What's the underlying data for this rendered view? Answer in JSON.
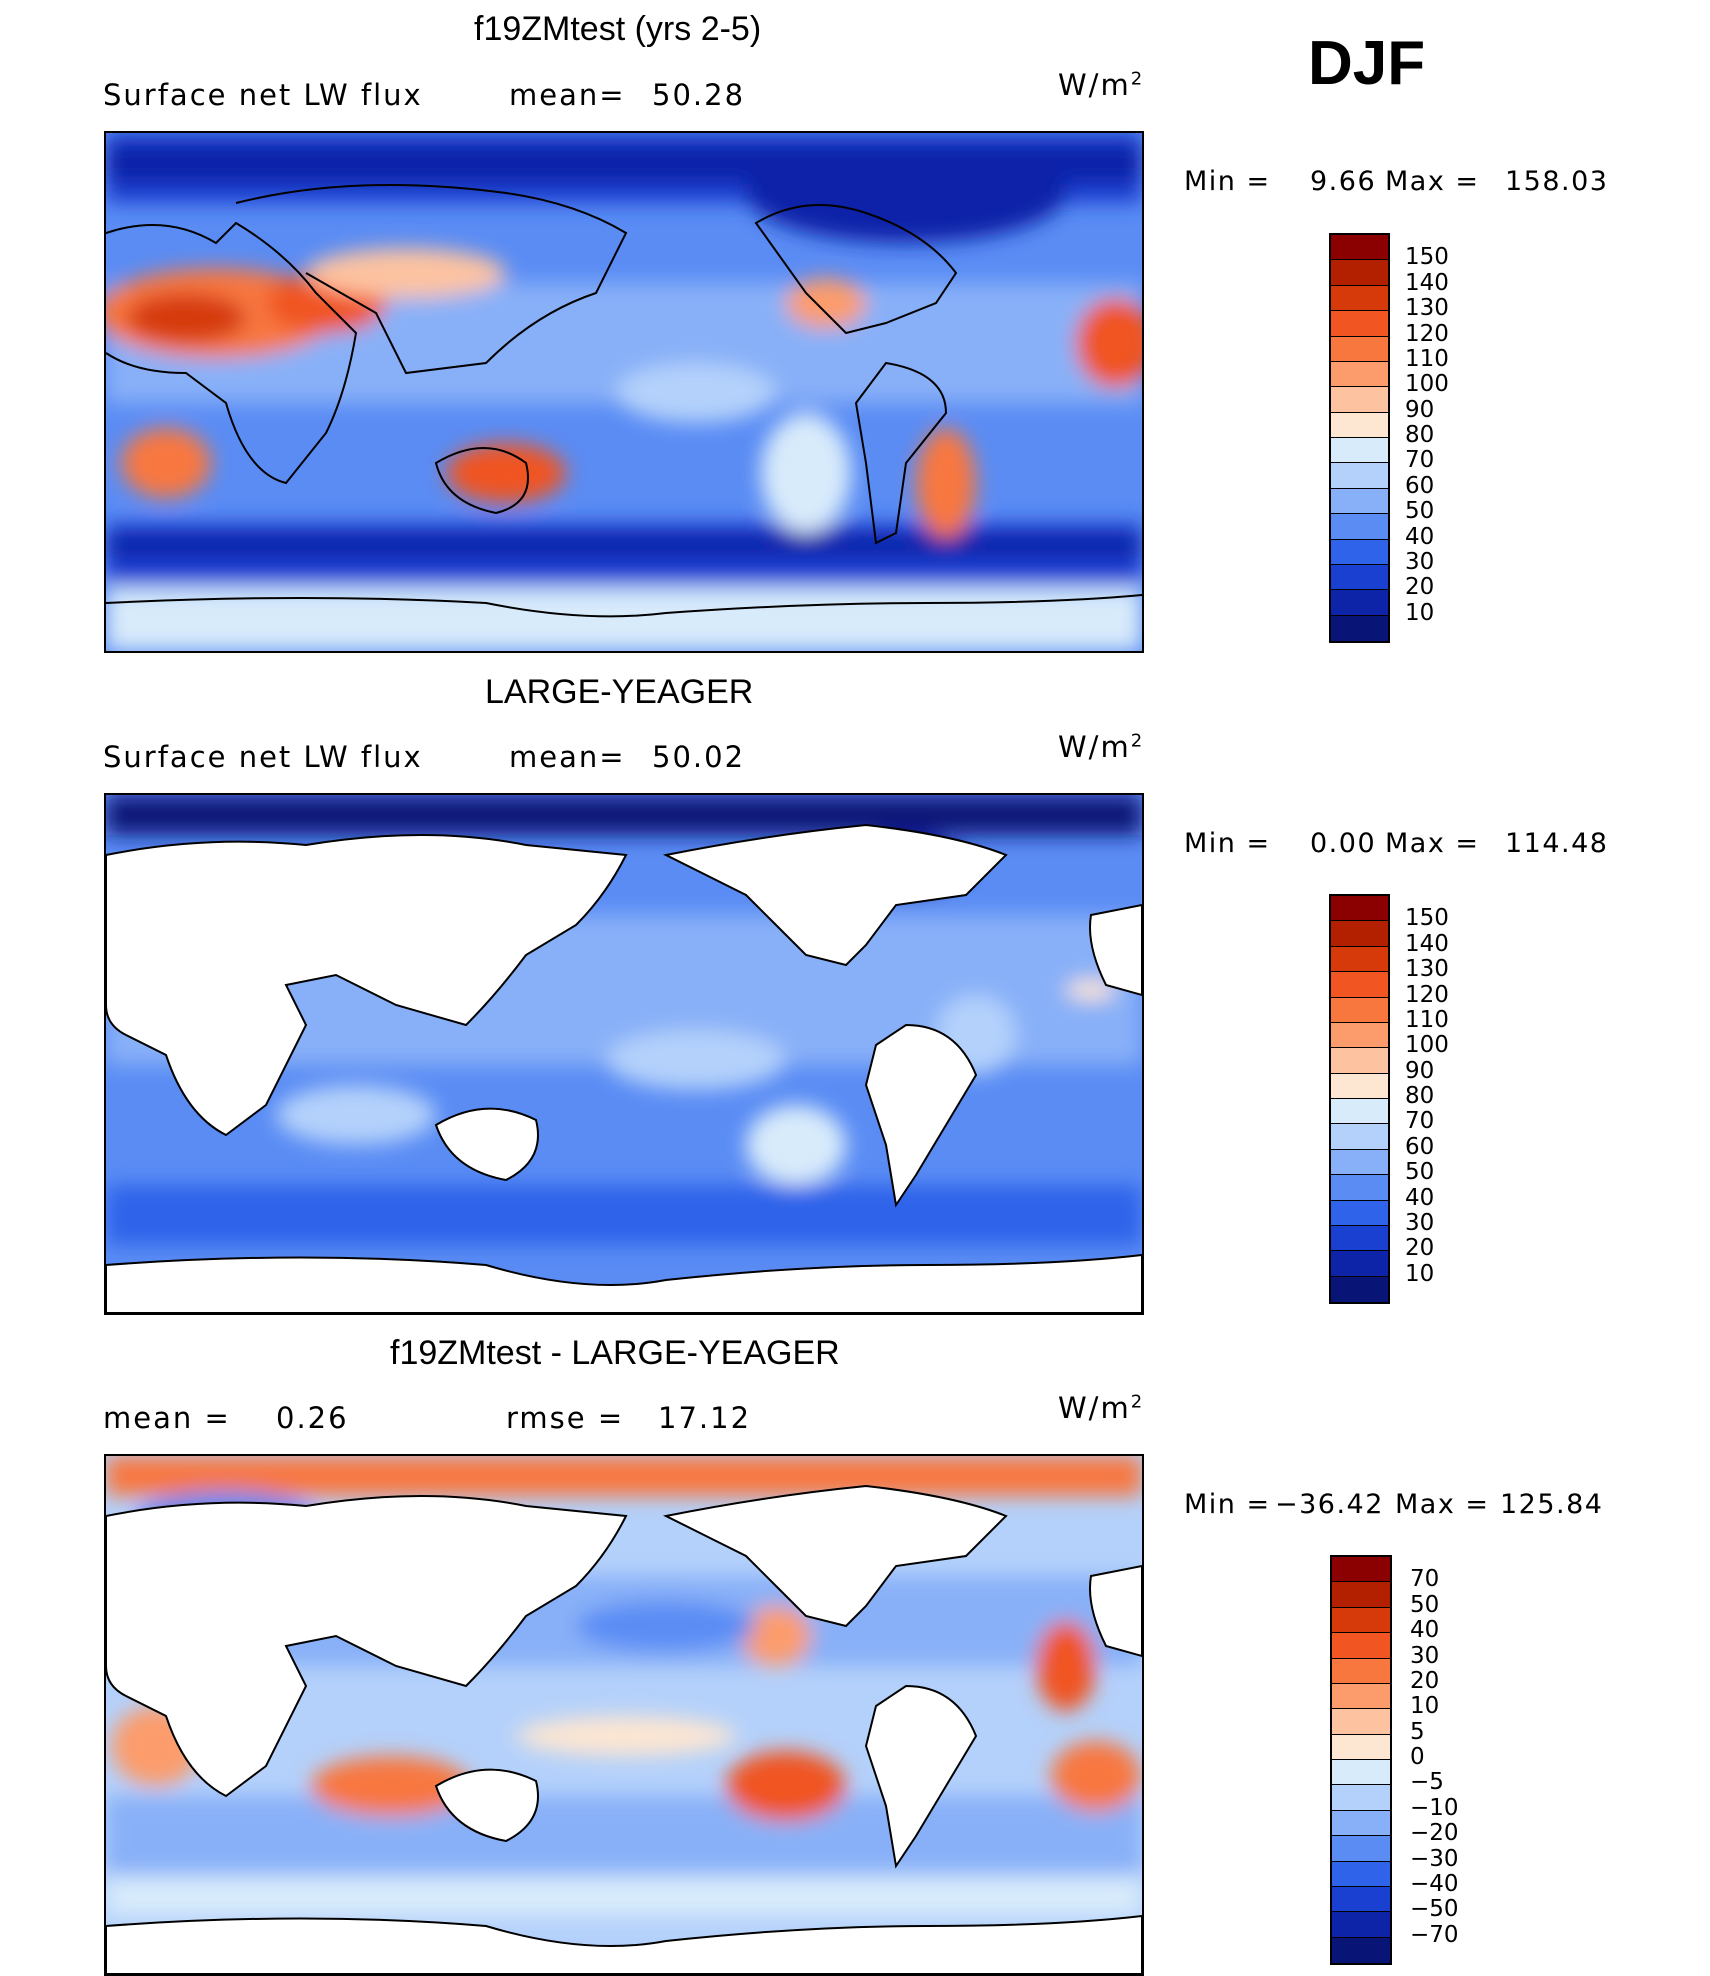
{
  "season": "DJF",
  "panels": [
    {
      "title": "f19ZMtest (yrs 2-5)",
      "left_label": "Surface net LW flux",
      "stat1_label": "mean=",
      "stat1_value": "50.28",
      "stat2_label": "",
      "stat2_value": "",
      "units": "W/m",
      "units_sup": "2",
      "min_label": "Min =",
      "min_value": "9.66",
      "max_label": "Max =",
      "max_value": "158.03",
      "colorbar_labels": [
        "150",
        "140",
        "130",
        "120",
        "110",
        "100",
        "90",
        "80",
        "70",
        "60",
        "50",
        "40",
        "30",
        "20",
        "10"
      ],
      "colorbar_colors": [
        "#8b0000",
        "#b22000",
        "#d63a0a",
        "#f05522",
        "#f8773f",
        "#fc9c6c",
        "#fdc3a0",
        "#fde6d2",
        "#d8ebfb",
        "#b4d1fb",
        "#88b0f8",
        "#5a8cf4",
        "#2f63ea",
        "#1a40d2",
        "#0d23a8",
        "#081577"
      ]
    },
    {
      "title": "LARGE-YEAGER",
      "left_label": "Surface net LW flux",
      "stat1_label": "mean=",
      "stat1_value": "50.02",
      "stat2_label": "",
      "stat2_value": "",
      "units": "W/m",
      "units_sup": "2",
      "min_label": "Min =",
      "min_value": "0.00",
      "max_label": "Max =",
      "max_value": "114.48",
      "colorbar_labels": [
        "150",
        "140",
        "130",
        "120",
        "110",
        "100",
        "90",
        "80",
        "70",
        "60",
        "50",
        "40",
        "30",
        "20",
        "10"
      ],
      "colorbar_colors": [
        "#8b0000",
        "#b22000",
        "#d63a0a",
        "#f05522",
        "#f8773f",
        "#fc9c6c",
        "#fdc3a0",
        "#fde6d2",
        "#d8ebfb",
        "#b4d1fb",
        "#88b0f8",
        "#5a8cf4",
        "#2f63ea",
        "#1a40d2",
        "#0d23a8",
        "#081577"
      ]
    },
    {
      "title": "f19ZMtest - LARGE-YEAGER",
      "left_label": "mean =",
      "stat1_label": "",
      "stat1_value": "0.26",
      "stat2_label": "rmse =",
      "stat2_value": "17.12",
      "units": "W/m",
      "units_sup": "2",
      "min_label": "Min =",
      "min_value": "−36.42",
      "max_label": "Max =",
      "max_value": "125.84",
      "colorbar_labels": [
        "70",
        "50",
        "40",
        "30",
        "20",
        "10",
        "5",
        "0",
        "−5",
        "−10",
        "−20",
        "−30",
        "−40",
        "−50",
        "−70"
      ],
      "colorbar_colors": [
        "#8b0000",
        "#b22000",
        "#d63a0a",
        "#f05522",
        "#f8773f",
        "#fc9c6c",
        "#fdc3a0",
        "#fde6d2",
        "#d8ebfb",
        "#b4d1fb",
        "#88b0f8",
        "#5a8cf4",
        "#2f63ea",
        "#1a40d2",
        "#0d23a8",
        "#081577"
      ]
    }
  ]
}
